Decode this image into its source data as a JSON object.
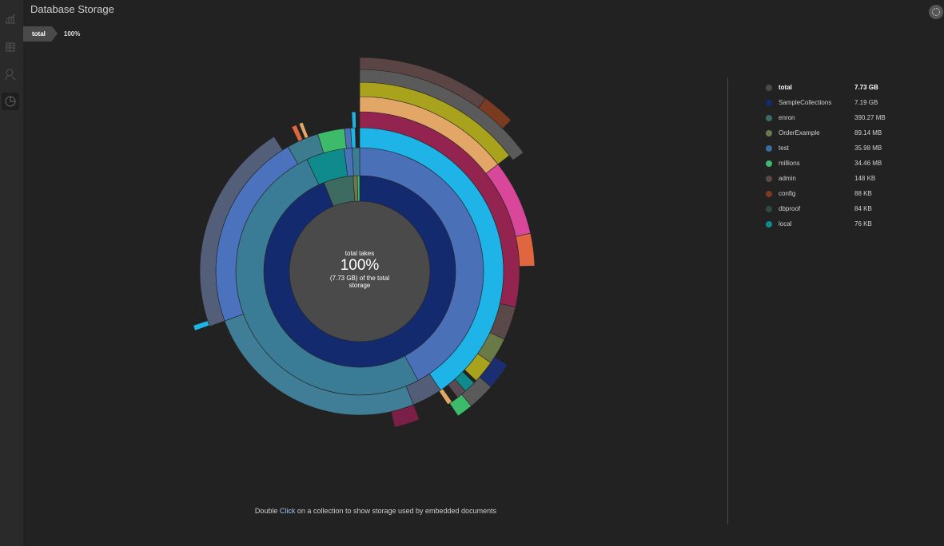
{
  "header": {
    "title": "Database Storage"
  },
  "breadcrumb": {
    "item": "total",
    "percent": "100%"
  },
  "sidebar": {
    "icons": [
      "chart-icon",
      "table-icon",
      "search-user-icon",
      "pie-chart-icon"
    ],
    "active": 3
  },
  "center": {
    "line1": "total takes",
    "percent": "100%",
    "line2": "(7.73 GB) of the total",
    "line3": "storage"
  },
  "hint": {
    "prefix": "Double ",
    "link": "Click",
    "suffix": " on a collection to show storage used by embedded documents"
  },
  "legend": [
    {
      "name": "total",
      "size": "7.73 GB",
      "color": "#4a4a4a"
    },
    {
      "name": "SampleCollections",
      "size": "7.19 GB",
      "color": "#142a6e"
    },
    {
      "name": "enron",
      "size": "390.27 MB",
      "color": "#3d6b62"
    },
    {
      "name": "OrderExample",
      "size": "89.14 MB",
      "color": "#6b7a4a"
    },
    {
      "name": "test",
      "size": "35.98 MB",
      "color": "#3d6aa0"
    },
    {
      "name": "millions",
      "size": "34.46 MB",
      "color": "#3dbb6a"
    },
    {
      "name": "admin",
      "size": "148 KB",
      "color": "#5a4848"
    },
    {
      "name": "config",
      "size": "88 KB",
      "color": "#7a3b20"
    },
    {
      "name": "dbproof",
      "size": "84 KB",
      "color": "#2f4a40"
    },
    {
      "name": "local",
      "size": "76 KB",
      "color": "#0f8b8d"
    }
  ],
  "chart_data": {
    "type": "sunburst",
    "unit": "percent of total storage",
    "total": "7.73 GB",
    "rings": [
      [
        {
          "c": "#142a6e",
          "s": 0,
          "e": 93.9
        },
        {
          "c": "#3d6b62",
          "s": 93.9,
          "e": 98.9
        },
        {
          "c": "#6b7a4a",
          "s": 98.9,
          "e": 99.6
        },
        {
          "c": "#3dbb6a",
          "s": 99.6,
          "e": 100
        }
      ],
      [
        {
          "c": "#4a70b8",
          "s": 0,
          "e": 42.2
        },
        {
          "c": "#3a7c96",
          "s": 42.2,
          "e": 93
        },
        {
          "c": "#0f8b8d",
          "s": 93,
          "e": 98
        },
        {
          "c": "#4a72b8",
          "s": 98,
          "e": 99
        },
        {
          "c": "#3a7c96",
          "s": 99,
          "e": 100
        }
      ],
      [
        {
          "c": "#1eb4e8",
          "s": 0,
          "e": 40.5
        },
        {
          "c": "#525d78",
          "s": 40.5,
          "e": 43.9
        },
        {
          "c": "#3f7e96",
          "s": 43.9,
          "e": 69.4
        },
        {
          "c": "#4a72bd",
          "s": 69.4,
          "e": 91.7
        },
        {
          "c": "#3d7b8e",
          "s": 91.7,
          "e": 95.3
        },
        {
          "c": "#3dbb6a",
          "s": 95.3,
          "e": 98.3
        },
        {
          "c": "#4a72b8",
          "s": 98.3,
          "e": 99
        },
        {
          "c": "#1eb4e8",
          "s": 99,
          "e": 99.5
        }
      ],
      [
        {
          "c": "#93244f",
          "s": 0,
          "e": 28.6
        },
        {
          "c": "#5b4848",
          "s": 28.6,
          "e": 32
        },
        {
          "c": "#6a7a46",
          "s": 32,
          "e": 34.7
        },
        {
          "c": "#a9a21c",
          "s": 34.7,
          "e": 37
        },
        {
          "c": "#0f8b8d",
          "s": 37.3,
          "e": 38.5
        },
        {
          "c": "#5a4a55",
          "s": 38.5,
          "e": 39.5
        },
        {
          "c": "#e2a766",
          "s": 40.2,
          "e": 40.7
        },
        {
          "c": "#7a1f45",
          "s": 43.9,
          "e": 46.5
        },
        {
          "c": "#535e78",
          "s": 69.4,
          "e": 91
        },
        {
          "c": "#e0663f",
          "s": 93,
          "e": 93.5
        },
        {
          "c": "#e2a766",
          "s": 93.8,
          "e": 94.2
        },
        {
          "c": "#1eb4e8",
          "s": 99.2,
          "e": 99.6
        }
      ],
      [
        {
          "c": "#e2a766",
          "s": 0,
          "e": 14.5
        },
        {
          "c": "#d9479b",
          "s": 14.5,
          "e": 21.5
        },
        {
          "c": "#e0663f",
          "s": 21.5,
          "e": 24.5
        },
        {
          "c": "#1b2f70",
          "s": 34,
          "e": 36.5
        },
        {
          "c": "#5a5a5a",
          "s": 36.5,
          "e": 39
        },
        {
          "c": "#3dbb6a",
          "s": 39,
          "e": 40.5
        },
        {
          "c": "#1eb4e8",
          "s": 69.5,
          "e": 70
        }
      ],
      [
        {
          "c": "#a9a21c",
          "s": 0,
          "e": 14.5
        }
      ],
      [
        {
          "c": "#5a5a5a",
          "s": 0,
          "e": 15
        }
      ],
      [
        {
          "c": "#5a4444",
          "s": 0,
          "e": 10
        },
        {
          "c": "#7a3b20",
          "s": 10,
          "e": 12.5
        }
      ]
    ]
  }
}
